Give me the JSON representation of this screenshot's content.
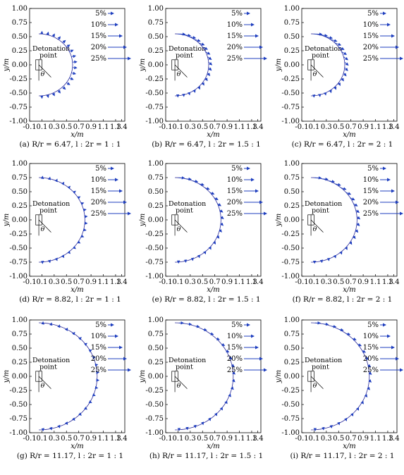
{
  "figure": {
    "panels": [
      {
        "id": "a",
        "caption": "(a) R/r = 6.47,  l : 2r = 1 : 1"
      },
      {
        "id": "b",
        "caption": "(b) R/r = 6.47,  l : 2r = 1.5 : 1"
      },
      {
        "id": "c",
        "caption": "(c) R/r = 6.47,  l : 2r = 2 : 1"
      },
      {
        "id": "d",
        "caption": "(d) R/r = 8.82,  l : 2r = 1 : 1"
      },
      {
        "id": "e",
        "caption": "(e) R/r = 8.82,  l : 2r = 1.5 : 1"
      },
      {
        "id": "f",
        "caption": "(f) R/r = 8.82,  l : 2r = 2 : 1"
      },
      {
        "id": "g",
        "caption": "(g) R/r = 11.17,  l : 2r = 1 : 1"
      },
      {
        "id": "h",
        "caption": "(h) R/r = 11.17,  l : 2r = 1.5 : 1"
      },
      {
        "id": "i",
        "caption": "(i) R/r = 11.17,  l : 2r = 2 : 1"
      }
    ],
    "xlabel": "x/m",
    "ylabel": "y/m",
    "xticks": [
      "-0.1",
      "0.1",
      "0.3",
      "0.5",
      "0.7",
      "0.9",
      "1.1",
      "1.3",
      "1.4"
    ],
    "yticks": [
      "1.00",
      "0.75",
      "0.50",
      "0.25",
      "0.00",
      "-0.25",
      "-0.50",
      "-0.75",
      "-1.00"
    ],
    "legend": [
      "5%",
      "10%",
      "15%",
      "20%",
      "25%"
    ],
    "annotation_detonation_1": "Detonation",
    "annotation_detonation_2": "point",
    "annotation_theta": "θ",
    "colors": {
      "axis": "#000000",
      "curve": "#2b2b9a",
      "arrow": "#1f3fbf",
      "arrow_tip": "#c0392b"
    }
  },
  "chart_data": [
    {
      "type": "vector-field",
      "panel": "a",
      "R": 0.55,
      "arc_center": [
        0.0,
        0.0
      ],
      "n_arrows": 18,
      "arrow_dir": "outward",
      "magnitude_scale": 0.07,
      "ratio": "1:1"
    },
    {
      "type": "vector-field",
      "panel": "b",
      "R": 0.55,
      "arc_center": [
        0.0,
        0.0
      ],
      "n_arrows": 18,
      "arrow_dir": "inward-top",
      "magnitude_scale": 0.1,
      "ratio": "1.5:1"
    },
    {
      "type": "vector-field",
      "panel": "c",
      "R": 0.55,
      "arc_center": [
        0.0,
        0.0
      ],
      "n_arrows": 18,
      "arrow_dir": "inward-top",
      "magnitude_scale": 0.11,
      "ratio": "2:1"
    },
    {
      "type": "vector-field",
      "panel": "d",
      "R": 0.75,
      "arc_center": [
        0.0,
        0.0
      ],
      "n_arrows": 20,
      "arrow_dir": "outward",
      "magnitude_scale": 0.04,
      "ratio": "1:1"
    },
    {
      "type": "vector-field",
      "panel": "e",
      "R": 0.75,
      "arc_center": [
        0.0,
        0.0
      ],
      "n_arrows": 20,
      "arrow_dir": "inward-top",
      "magnitude_scale": 0.08,
      "ratio": "1.5:1"
    },
    {
      "type": "vector-field",
      "panel": "f",
      "R": 0.75,
      "arc_center": [
        0.0,
        0.0
      ],
      "n_arrows": 20,
      "arrow_dir": "inward-top",
      "magnitude_scale": 0.09,
      "ratio": "2:1"
    },
    {
      "type": "vector-field",
      "panel": "g",
      "R": 0.95,
      "arc_center": [
        0.0,
        0.0
      ],
      "n_arrows": 22,
      "arrow_dir": "outward",
      "magnitude_scale": 0.03,
      "ratio": "1:1"
    },
    {
      "type": "vector-field",
      "panel": "h",
      "R": 0.95,
      "arc_center": [
        0.0,
        0.0
      ],
      "n_arrows": 22,
      "arrow_dir": "inward-top",
      "magnitude_scale": 0.06,
      "ratio": "1.5:1"
    },
    {
      "type": "vector-field",
      "panel": "i",
      "R": 0.95,
      "arc_center": [
        0.0,
        0.0
      ],
      "n_arrows": 22,
      "arrow_dir": "inward-top",
      "magnitude_scale": 0.07,
      "ratio": "2:1"
    }
  ]
}
